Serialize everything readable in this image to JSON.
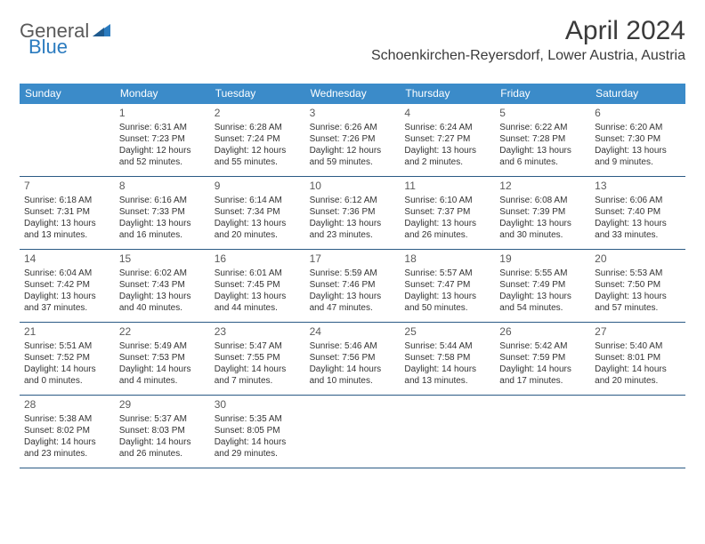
{
  "brand": {
    "part1": "General",
    "part2": "Blue"
  },
  "title": "April 2024",
  "location": "Schoenkirchen-Reyersdorf, Lower Austria, Austria",
  "colors": {
    "header_bg": "#3b8bc9",
    "header_text": "#ffffff",
    "cell_border": "#2b5a85",
    "body_text": "#333333",
    "brand_gray": "#5a5a5a",
    "brand_blue": "#2b7bbf"
  },
  "weekdays": [
    "Sunday",
    "Monday",
    "Tuesday",
    "Wednesday",
    "Thursday",
    "Friday",
    "Saturday"
  ],
  "weeks": [
    [
      {
        "day": "",
        "sunrise": "",
        "sunset": "",
        "daylight1": "",
        "daylight2": ""
      },
      {
        "day": "1",
        "sunrise": "Sunrise: 6:31 AM",
        "sunset": "Sunset: 7:23 PM",
        "daylight1": "Daylight: 12 hours",
        "daylight2": "and 52 minutes."
      },
      {
        "day": "2",
        "sunrise": "Sunrise: 6:28 AM",
        "sunset": "Sunset: 7:24 PM",
        "daylight1": "Daylight: 12 hours",
        "daylight2": "and 55 minutes."
      },
      {
        "day": "3",
        "sunrise": "Sunrise: 6:26 AM",
        "sunset": "Sunset: 7:26 PM",
        "daylight1": "Daylight: 12 hours",
        "daylight2": "and 59 minutes."
      },
      {
        "day": "4",
        "sunrise": "Sunrise: 6:24 AM",
        "sunset": "Sunset: 7:27 PM",
        "daylight1": "Daylight: 13 hours",
        "daylight2": "and 2 minutes."
      },
      {
        "day": "5",
        "sunrise": "Sunrise: 6:22 AM",
        "sunset": "Sunset: 7:28 PM",
        "daylight1": "Daylight: 13 hours",
        "daylight2": "and 6 minutes."
      },
      {
        "day": "6",
        "sunrise": "Sunrise: 6:20 AM",
        "sunset": "Sunset: 7:30 PM",
        "daylight1": "Daylight: 13 hours",
        "daylight2": "and 9 minutes."
      }
    ],
    [
      {
        "day": "7",
        "sunrise": "Sunrise: 6:18 AM",
        "sunset": "Sunset: 7:31 PM",
        "daylight1": "Daylight: 13 hours",
        "daylight2": "and 13 minutes."
      },
      {
        "day": "8",
        "sunrise": "Sunrise: 6:16 AM",
        "sunset": "Sunset: 7:33 PM",
        "daylight1": "Daylight: 13 hours",
        "daylight2": "and 16 minutes."
      },
      {
        "day": "9",
        "sunrise": "Sunrise: 6:14 AM",
        "sunset": "Sunset: 7:34 PM",
        "daylight1": "Daylight: 13 hours",
        "daylight2": "and 20 minutes."
      },
      {
        "day": "10",
        "sunrise": "Sunrise: 6:12 AM",
        "sunset": "Sunset: 7:36 PM",
        "daylight1": "Daylight: 13 hours",
        "daylight2": "and 23 minutes."
      },
      {
        "day": "11",
        "sunrise": "Sunrise: 6:10 AM",
        "sunset": "Sunset: 7:37 PM",
        "daylight1": "Daylight: 13 hours",
        "daylight2": "and 26 minutes."
      },
      {
        "day": "12",
        "sunrise": "Sunrise: 6:08 AM",
        "sunset": "Sunset: 7:39 PM",
        "daylight1": "Daylight: 13 hours",
        "daylight2": "and 30 minutes."
      },
      {
        "day": "13",
        "sunrise": "Sunrise: 6:06 AM",
        "sunset": "Sunset: 7:40 PM",
        "daylight1": "Daylight: 13 hours",
        "daylight2": "and 33 minutes."
      }
    ],
    [
      {
        "day": "14",
        "sunrise": "Sunrise: 6:04 AM",
        "sunset": "Sunset: 7:42 PM",
        "daylight1": "Daylight: 13 hours",
        "daylight2": "and 37 minutes."
      },
      {
        "day": "15",
        "sunrise": "Sunrise: 6:02 AM",
        "sunset": "Sunset: 7:43 PM",
        "daylight1": "Daylight: 13 hours",
        "daylight2": "and 40 minutes."
      },
      {
        "day": "16",
        "sunrise": "Sunrise: 6:01 AM",
        "sunset": "Sunset: 7:45 PM",
        "daylight1": "Daylight: 13 hours",
        "daylight2": "and 44 minutes."
      },
      {
        "day": "17",
        "sunrise": "Sunrise: 5:59 AM",
        "sunset": "Sunset: 7:46 PM",
        "daylight1": "Daylight: 13 hours",
        "daylight2": "and 47 minutes."
      },
      {
        "day": "18",
        "sunrise": "Sunrise: 5:57 AM",
        "sunset": "Sunset: 7:47 PM",
        "daylight1": "Daylight: 13 hours",
        "daylight2": "and 50 minutes."
      },
      {
        "day": "19",
        "sunrise": "Sunrise: 5:55 AM",
        "sunset": "Sunset: 7:49 PM",
        "daylight1": "Daylight: 13 hours",
        "daylight2": "and 54 minutes."
      },
      {
        "day": "20",
        "sunrise": "Sunrise: 5:53 AM",
        "sunset": "Sunset: 7:50 PM",
        "daylight1": "Daylight: 13 hours",
        "daylight2": "and 57 minutes."
      }
    ],
    [
      {
        "day": "21",
        "sunrise": "Sunrise: 5:51 AM",
        "sunset": "Sunset: 7:52 PM",
        "daylight1": "Daylight: 14 hours",
        "daylight2": "and 0 minutes."
      },
      {
        "day": "22",
        "sunrise": "Sunrise: 5:49 AM",
        "sunset": "Sunset: 7:53 PM",
        "daylight1": "Daylight: 14 hours",
        "daylight2": "and 4 minutes."
      },
      {
        "day": "23",
        "sunrise": "Sunrise: 5:47 AM",
        "sunset": "Sunset: 7:55 PM",
        "daylight1": "Daylight: 14 hours",
        "daylight2": "and 7 minutes."
      },
      {
        "day": "24",
        "sunrise": "Sunrise: 5:46 AM",
        "sunset": "Sunset: 7:56 PM",
        "daylight1": "Daylight: 14 hours",
        "daylight2": "and 10 minutes."
      },
      {
        "day": "25",
        "sunrise": "Sunrise: 5:44 AM",
        "sunset": "Sunset: 7:58 PM",
        "daylight1": "Daylight: 14 hours",
        "daylight2": "and 13 minutes."
      },
      {
        "day": "26",
        "sunrise": "Sunrise: 5:42 AM",
        "sunset": "Sunset: 7:59 PM",
        "daylight1": "Daylight: 14 hours",
        "daylight2": "and 17 minutes."
      },
      {
        "day": "27",
        "sunrise": "Sunrise: 5:40 AM",
        "sunset": "Sunset: 8:01 PM",
        "daylight1": "Daylight: 14 hours",
        "daylight2": "and 20 minutes."
      }
    ],
    [
      {
        "day": "28",
        "sunrise": "Sunrise: 5:38 AM",
        "sunset": "Sunset: 8:02 PM",
        "daylight1": "Daylight: 14 hours",
        "daylight2": "and 23 minutes."
      },
      {
        "day": "29",
        "sunrise": "Sunrise: 5:37 AM",
        "sunset": "Sunset: 8:03 PM",
        "daylight1": "Daylight: 14 hours",
        "daylight2": "and 26 minutes."
      },
      {
        "day": "30",
        "sunrise": "Sunrise: 5:35 AM",
        "sunset": "Sunset: 8:05 PM",
        "daylight1": "Daylight: 14 hours",
        "daylight2": "and 29 minutes."
      },
      {
        "day": "",
        "sunrise": "",
        "sunset": "",
        "daylight1": "",
        "daylight2": ""
      },
      {
        "day": "",
        "sunrise": "",
        "sunset": "",
        "daylight1": "",
        "daylight2": ""
      },
      {
        "day": "",
        "sunrise": "",
        "sunset": "",
        "daylight1": "",
        "daylight2": ""
      },
      {
        "day": "",
        "sunrise": "",
        "sunset": "",
        "daylight1": "",
        "daylight2": ""
      }
    ]
  ]
}
